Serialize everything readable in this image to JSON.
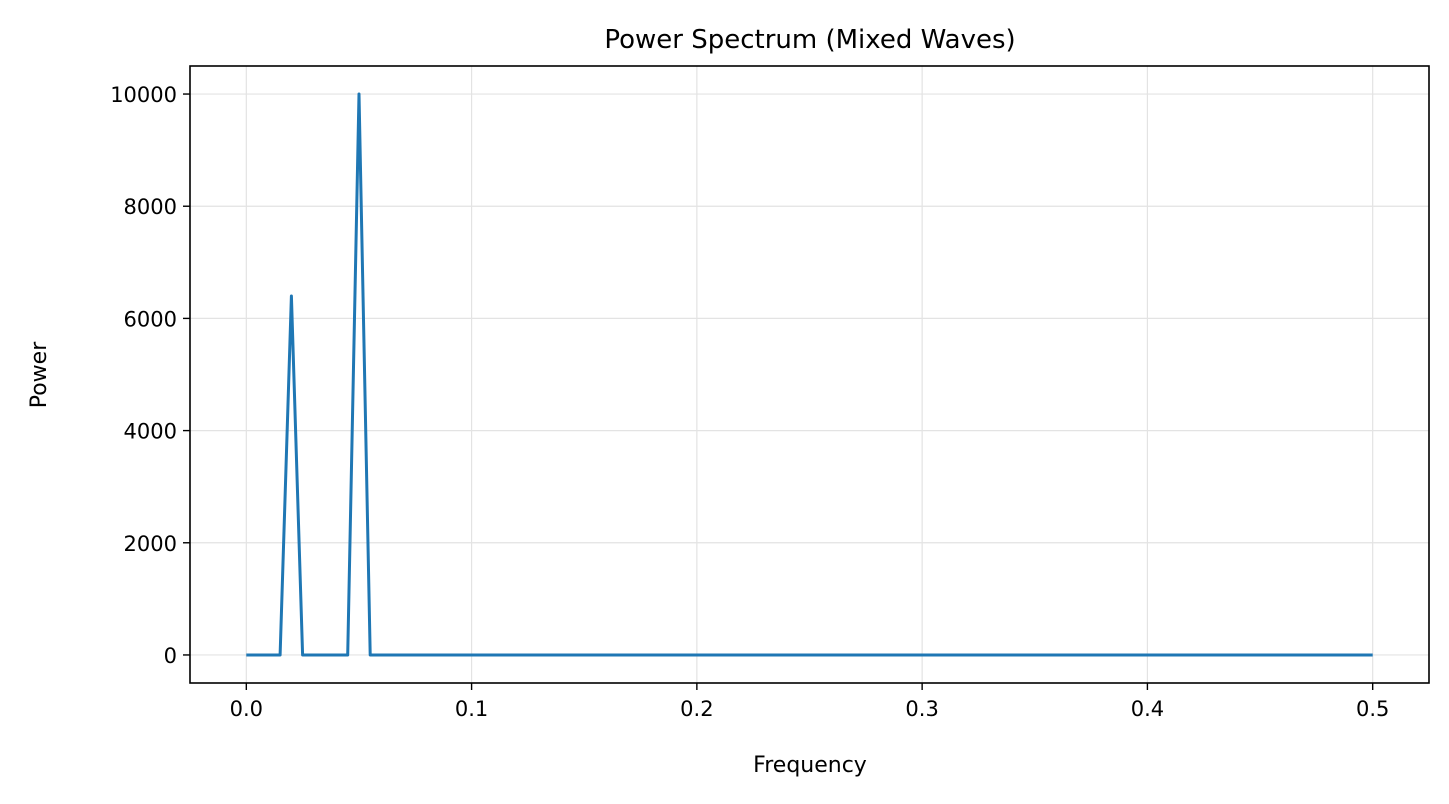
{
  "chart_data": {
    "type": "line",
    "title": "Power Spectrum (Mixed Waves)",
    "xlabel": "Frequency",
    "ylabel": "Power",
    "xlim": [
      -0.025,
      0.525
    ],
    "ylim": [
      -500,
      10500
    ],
    "grid": true,
    "legend": null,
    "xticks": [
      "0.0",
      "0.1",
      "0.2",
      "0.3",
      "0.4",
      "0.5"
    ],
    "yticks": [
      "0",
      "2000",
      "4000",
      "6000",
      "8000",
      "10000"
    ],
    "series": [
      {
        "name": "power",
        "color": "#1f77b4",
        "x": [
          0.0,
          0.015,
          0.02,
          0.025,
          0.045,
          0.05,
          0.055,
          0.5
        ],
        "y": [
          0,
          0,
          6400,
          0,
          0,
          10000,
          0,
          0
        ]
      }
    ]
  }
}
